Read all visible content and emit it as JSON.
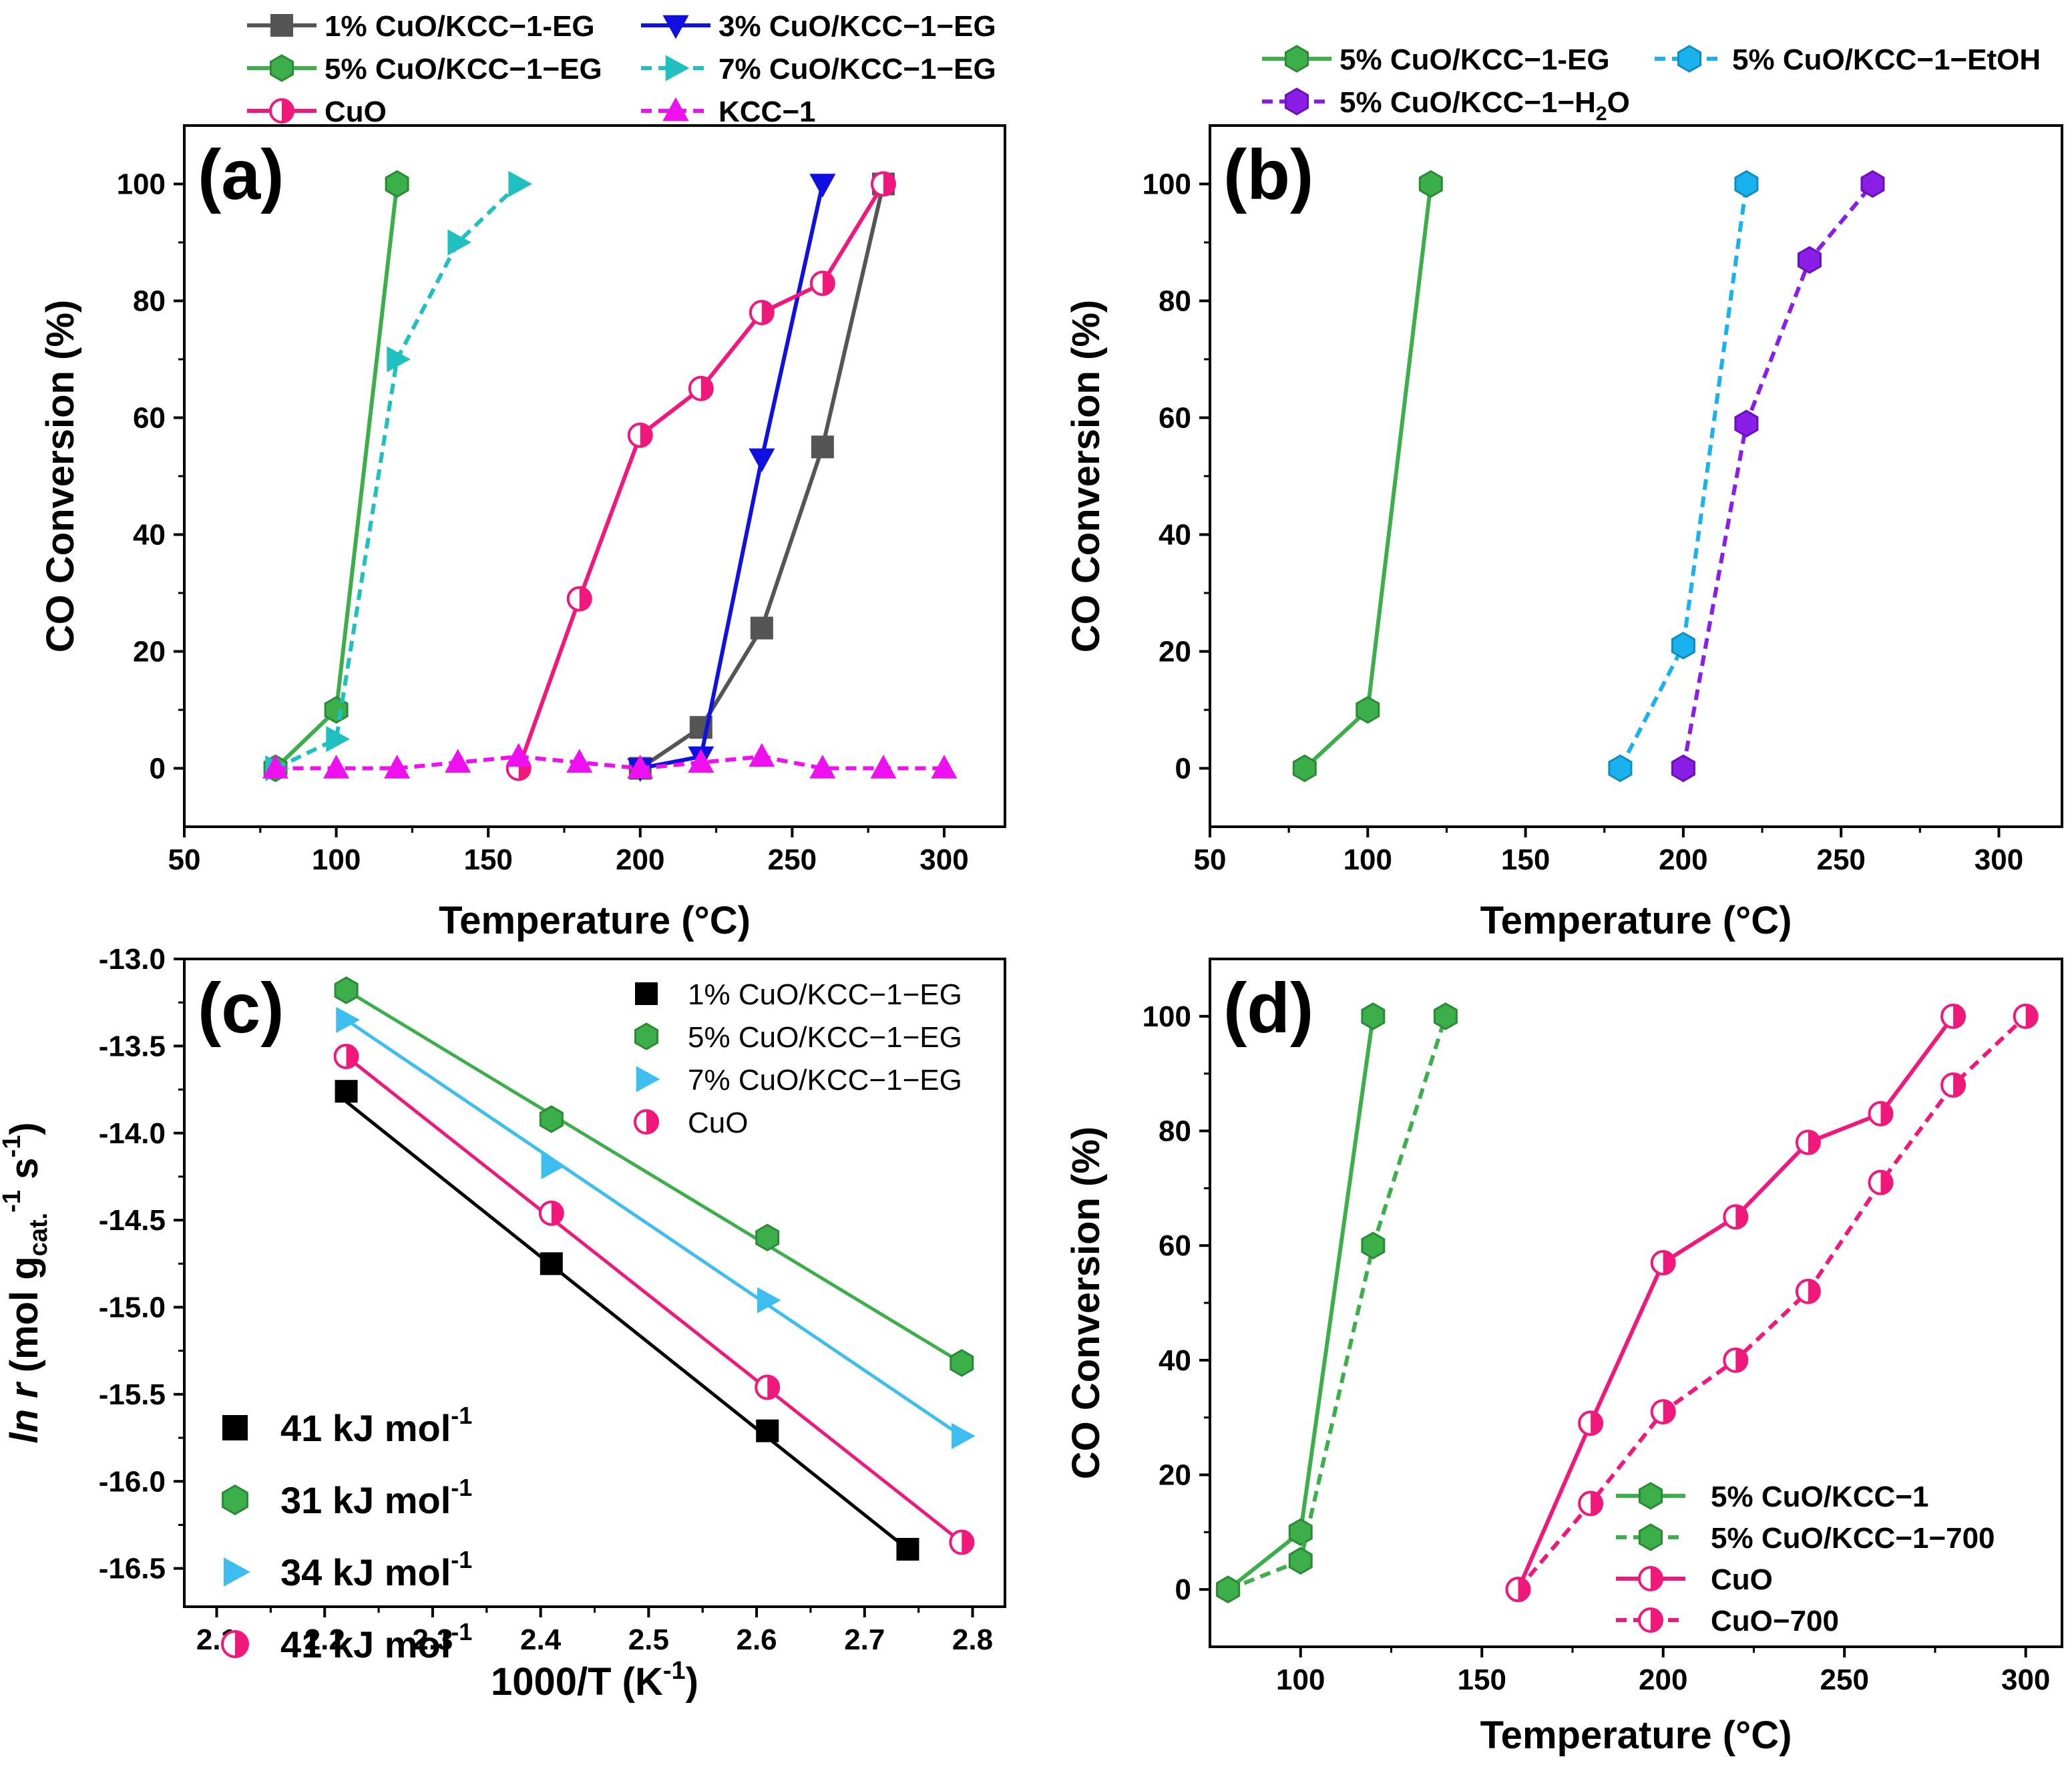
{
  "chart_data": [
    {
      "panel_label": "(a)",
      "type": "line",
      "xlabel": "Temperature (°C)",
      "ylabel": "CO Conversion (%)",
      "xlim": [
        50,
        320
      ],
      "ylim": [
        -10,
        110
      ],
      "xticks": [
        "50",
        "100",
        "150",
        "200",
        "250",
        "300"
      ],
      "yticks": [
        "0",
        "20",
        "40",
        "60",
        "80",
        "100"
      ],
      "legend_position": "top (above plot)",
      "series": [
        {
          "name": "1% CuO/KCC−1-EG",
          "color": "#555555",
          "marker": "square",
          "dash": "solid",
          "points": [
            [
              200,
              0
            ],
            [
              220,
              7
            ],
            [
              240,
              24
            ],
            [
              260,
              55
            ],
            [
              280,
              100
            ]
          ]
        },
        {
          "name": "3% CuO/KCC−1−EG",
          "color": "#1010e0",
          "marker": "triangle-down",
          "dash": "solid",
          "points": [
            [
              200,
              0
            ],
            [
              220,
              2
            ],
            [
              240,
              53
            ],
            [
              260,
              100
            ]
          ]
        },
        {
          "name": "5% CuO/KCC−1−EG",
          "color": "#3cae4a",
          "marker": "hexagon",
          "dash": "solid",
          "points": [
            [
              80,
              0
            ],
            [
              100,
              10
            ],
            [
              120,
              100
            ]
          ]
        },
        {
          "name": "7% CuO/KCC−1−EG",
          "color": "#20c0c0",
          "marker": "triangle-right",
          "dash": "dashed",
          "points": [
            [
              80,
              0
            ],
            [
              100,
              5
            ],
            [
              120,
              70
            ],
            [
              140,
              90
            ],
            [
              160,
              100
            ]
          ]
        },
        {
          "name": "CuO",
          "color": "#f0187a",
          "marker": "half-circle",
          "dash": "solid",
          "points": [
            [
              160,
              0
            ],
            [
              180,
              29
            ],
            [
              200,
              57
            ],
            [
              220,
              65
            ],
            [
              240,
              78
            ],
            [
              260,
              83
            ],
            [
              280,
              100
            ]
          ]
        },
        {
          "name": "KCC−1",
          "color": "#ee10ee",
          "marker": "triangle-up",
          "dash": "dashed",
          "points": [
            [
              80,
              0
            ],
            [
              100,
              0
            ],
            [
              120,
              0
            ],
            [
              140,
              1
            ],
            [
              160,
              2
            ],
            [
              180,
              1
            ],
            [
              200,
              0
            ],
            [
              220,
              1
            ],
            [
              240,
              2
            ],
            [
              260,
              0
            ],
            [
              280,
              0
            ],
            [
              300,
              0
            ]
          ]
        }
      ]
    },
    {
      "panel_label": "(b)",
      "type": "line",
      "xlabel": "Temperature (°C)",
      "ylabel": "CO Conversion (%)",
      "xlim": [
        50,
        320
      ],
      "ylim": [
        -10,
        110
      ],
      "xticks": [
        "50",
        "100",
        "150",
        "200",
        "250",
        "300"
      ],
      "yticks": [
        "0",
        "20",
        "40",
        "60",
        "80",
        "100"
      ],
      "legend_position": "top (above plot)",
      "series": [
        {
          "name": "5% CuO/KCC−1-EG",
          "color": "#3cae4a",
          "marker": "hexagon",
          "dash": "solid",
          "points": [
            [
              80,
              0
            ],
            [
              100,
              10
            ],
            [
              120,
              100
            ]
          ]
        },
        {
          "name": "5% CuO/KCC−1−EtOH",
          "color": "#19b2ee",
          "marker": "hexagon",
          "dash": "dashed",
          "points": [
            [
              180,
              0
            ],
            [
              200,
              21
            ],
            [
              220,
              100
            ]
          ]
        },
        {
          "name": "5% CuO/KCC−1−H",
          "name_subscript": "2",
          "name_suffix": "O",
          "color": "#8a1ee6",
          "marker": "hexagon",
          "dash": "dashed",
          "points": [
            [
              200,
              0
            ],
            [
              220,
              59
            ],
            [
              240,
              87
            ],
            [
              260,
              100
            ]
          ]
        }
      ]
    },
    {
      "panel_label": "(c)",
      "type": "scatter",
      "xlabel": "1000/T (K",
      "xlabel_sup": "-1",
      "xlabel_end": ")",
      "ylabel_parts": {
        "italic": "ln r",
        "text1": " (mol g",
        "sub": "cat.",
        "sup1": "-1",
        "text2": " s",
        "sup2": "-1",
        "text3": ")"
      },
      "xlim": [
        2.07,
        2.83
      ],
      "ylim": [
        -16.72,
        -13.0
      ],
      "xticks": [
        "2.1",
        "2.2",
        "2.3",
        "2.4",
        "2.5",
        "2.6",
        "2.7",
        "2.8"
      ],
      "yticks": [
        "-13.0",
        "-13.5",
        "-14.0",
        "-14.5",
        "-15.0",
        "-15.5",
        "-16.0",
        "-16.5"
      ],
      "legend_position": "top-right",
      "series": [
        {
          "name": "1% CuO/KCC−1−EG",
          "color": "#000000",
          "marker": "square",
          "points": [
            [
              2.22,
              -13.76
            ],
            [
              2.41,
              -14.75
            ],
            [
              2.61,
              -15.71
            ],
            [
              2.74,
              -16.39
            ]
          ],
          "fit": [
            [
              2.22,
              -13.82
            ],
            [
              2.74,
              -16.39
            ]
          ],
          "energy": "41 kJ mol",
          "energy_sup": "-1"
        },
        {
          "name": "5% CuO/KCC−1−EG",
          "color": "#3cae4a",
          "marker": "hexagon",
          "points": [
            [
              2.22,
              -13.18
            ],
            [
              2.41,
              -13.92
            ],
            [
              2.61,
              -14.6
            ],
            [
              2.79,
              -15.32
            ]
          ],
          "fit": [
            [
              2.22,
              -13.18
            ],
            [
              2.79,
              -15.32
            ]
          ],
          "energy": "31 kJ mol",
          "energy_sup": "-1"
        },
        {
          "name": "7% CuO/KCC−1−EG",
          "color": "#3ebef0",
          "marker": "triangle-right",
          "points": [
            [
              2.22,
              -13.35
            ],
            [
              2.41,
              -14.19
            ],
            [
              2.61,
              -14.96
            ],
            [
              2.79,
              -15.74
            ]
          ],
          "fit": [
            [
              2.22,
              -13.35
            ],
            [
              2.79,
              -15.74
            ]
          ],
          "energy": "34 kJ mol",
          "energy_sup": "-1"
        },
        {
          "name": "CuO",
          "color": "#f0187a",
          "marker": "half-circle",
          "points": [
            [
              2.22,
              -13.56
            ],
            [
              2.41,
              -14.46
            ],
            [
              2.61,
              -15.46
            ],
            [
              2.79,
              -16.35
            ]
          ],
          "fit": [
            [
              2.22,
              -13.56
            ],
            [
              2.79,
              -16.35
            ]
          ],
          "energy": "41 kJ mol",
          "energy_sup": "-1"
        }
      ]
    },
    {
      "panel_label": "(d)",
      "type": "line",
      "xlabel": "Temperature (°C)",
      "ylabel": "CO Conversion (%)",
      "xlim": [
        75,
        310
      ],
      "ylim": [
        -10,
        110
      ],
      "xticks": [
        "100",
        "150",
        "200",
        "250",
        "300"
      ],
      "yticks": [
        "0",
        "20",
        "40",
        "60",
        "80",
        "100"
      ],
      "legend_position": "bottom-right",
      "series": [
        {
          "name": "5% CuO/KCC−1",
          "color": "#3cae4a",
          "marker": "hexagon",
          "dash": "solid",
          "points": [
            [
              80,
              0
            ],
            [
              100,
              10
            ],
            [
              120,
              100
            ]
          ]
        },
        {
          "name": "5% CuO/KCC−1−700",
          "color": "#3cae4a",
          "marker": "hexagon",
          "dash": "dashed",
          "points": [
            [
              80,
              0
            ],
            [
              100,
              5
            ],
            [
              120,
              60
            ],
            [
              140,
              100
            ]
          ]
        },
        {
          "name": "CuO",
          "color": "#f0187a",
          "marker": "half-circle",
          "dash": "solid",
          "points": [
            [
              160,
              0
            ],
            [
              180,
              29
            ],
            [
              200,
              57
            ],
            [
              220,
              65
            ],
            [
              240,
              78
            ],
            [
              260,
              83
            ],
            [
              280,
              100
            ]
          ]
        },
        {
          "name": "CuO−700",
          "color": "#f0187a",
          "marker": "half-circle",
          "dash": "dashed",
          "points": [
            [
              160,
              0
            ],
            [
              180,
              15
            ],
            [
              200,
              31
            ],
            [
              220,
              40
            ],
            [
              240,
              52
            ],
            [
              260,
              71
            ],
            [
              280,
              88
            ],
            [
              300,
              100
            ]
          ]
        }
      ]
    }
  ]
}
